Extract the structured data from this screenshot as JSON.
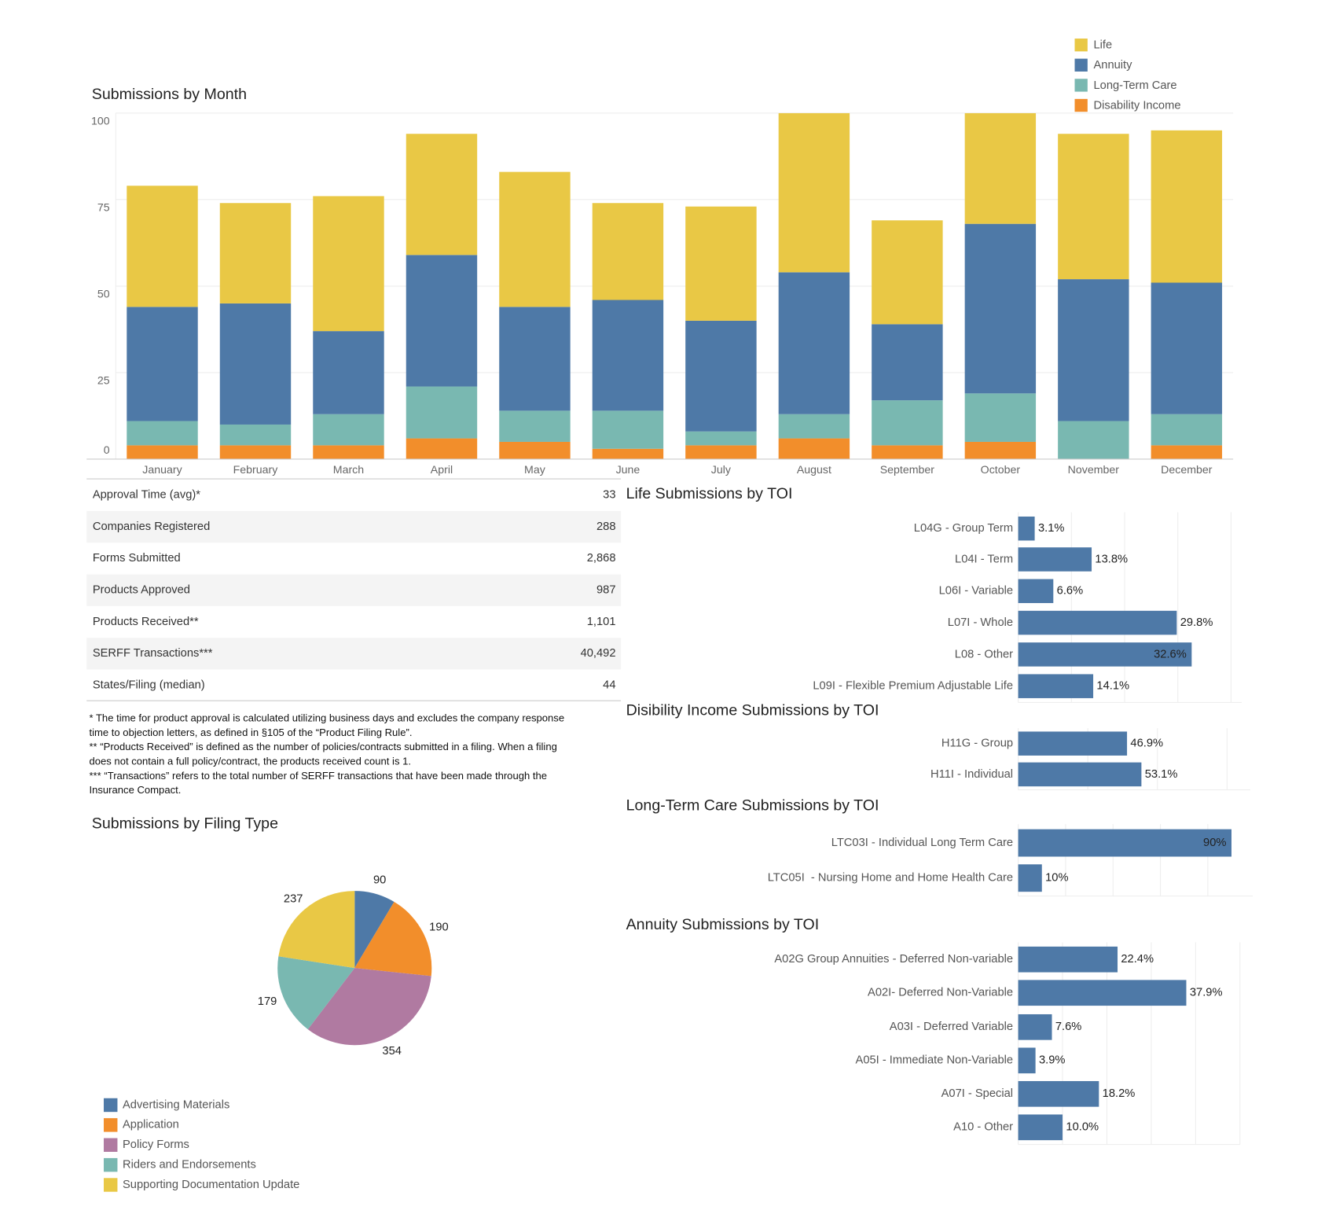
{
  "chart_data": [
    {
      "type": "stacked_bar",
      "title": "Submissions by Month",
      "categories": [
        "January",
        "February",
        "March",
        "April",
        "May",
        "June",
        "July",
        "August",
        "September",
        "October",
        "November",
        "December"
      ],
      "series": [
        {
          "name": "Life",
          "color": "#e9c845",
          "values": [
            35,
            29,
            39,
            35,
            39,
            28,
            33,
            46,
            30,
            32,
            42,
            44
          ]
        },
        {
          "name": "Annuity",
          "color": "#4e79a7",
          "values": [
            33,
            35,
            24,
            38,
            30,
            32,
            32,
            41,
            22,
            49,
            41,
            38
          ]
        },
        {
          "name": "Long-Term Care",
          "color": "#79b8b1",
          "values": [
            7,
            6,
            9,
            15,
            9,
            11,
            4,
            7,
            13,
            14,
            11,
            9
          ]
        },
        {
          "name": "Disability Income",
          "color": "#f28e2b",
          "values": [
            4,
            4,
            4,
            6,
            5,
            3,
            4,
            6,
            4,
            5,
            0,
            4
          ]
        }
      ],
      "ylim": [
        0,
        100
      ],
      "yticks": [
        0,
        25,
        50,
        75,
        100
      ],
      "grid": true,
      "legend": "top-right"
    },
    {
      "type": "pie",
      "title": "Submissions by Filing Type",
      "categories": [
        "Advertising Materials",
        "Application",
        "Policy Forms",
        "Riders and Endorsements",
        "Supporting Documentation Update"
      ],
      "values": [
        90,
        190,
        354,
        179,
        237
      ],
      "colors": [
        "#4e79a7",
        "#f28e2b",
        "#b07aa1",
        "#79b8b1",
        "#e9c845"
      ],
      "legend": "bottom-left"
    },
    {
      "type": "hbar",
      "title": "Life Submissions by TOI",
      "categories": [
        "L04G - Group Term",
        "L04I - Term",
        "L06I - Variable",
        "L07I - Whole",
        "L08 - Other",
        "L09I - Flexible Premium Adjustable Life"
      ],
      "values": [
        3.1,
        13.8,
        6.6,
        29.8,
        32.6,
        14.1
      ],
      "value_labels": [
        "3.1%",
        "13.8%",
        "6.6%",
        "29.8%",
        "32.6%",
        "14.1%"
      ],
      "color": "#4e79a7",
      "xlim": [
        0,
        42
      ],
      "xticks": [
        0,
        10,
        20,
        30,
        40
      ],
      "grid": true
    },
    {
      "type": "hbar",
      "title": "Disibility Income Submissions by TOI",
      "categories": [
        "H11G - Group",
        "H11I - Individual"
      ],
      "values": [
        46.9,
        53.1
      ],
      "value_labels": [
        "46.9%",
        "53.1%"
      ],
      "color": "#4e79a7",
      "xlim": [
        0,
        100
      ],
      "xticks": [
        0,
        30,
        60,
        90
      ],
      "grid": true
    },
    {
      "type": "hbar",
      "title": "Long-Term Care Submissions by TOI",
      "categories": [
        "LTC03I - Individual Long Term Care",
        "LTC05I  - Nursing Home and Home Health Care"
      ],
      "values": [
        90,
        10
      ],
      "value_labels": [
        "90%",
        "10%"
      ],
      "color": "#4e79a7",
      "xlim": [
        0,
        99
      ],
      "xticks": [
        0,
        20,
        40,
        60,
        80
      ],
      "grid": true
    },
    {
      "type": "hbar",
      "title": "Annuity Submissions by TOI",
      "categories": [
        "A02G Group Annuities - Deferred Non-variable",
        "A02I- Deferred Non-Variable",
        "A03I - Deferred Variable",
        "A05I - Immediate Non-Variable",
        "A07I - Special",
        "A10 - Other"
      ],
      "values": [
        22.4,
        37.9,
        7.6,
        3.9,
        18.2,
        10.0
      ],
      "value_labels": [
        "22.4%",
        "37.9%",
        "7.6%",
        "3.9%",
        "18.2%",
        "10.0%"
      ],
      "color": "#4e79a7",
      "xlim": [
        0,
        50
      ],
      "xticks": [
        0,
        10,
        20,
        30,
        40,
        50
      ],
      "grid": true
    }
  ],
  "stats_table": {
    "rows": [
      [
        "Approval Time (avg)*",
        "33"
      ],
      [
        "Companies Registered",
        "288"
      ],
      [
        "Forms Submitted",
        "2,868"
      ],
      [
        "Products Approved",
        "987"
      ],
      [
        "Products Received**",
        "1,101"
      ],
      [
        "SERFF Transactions***",
        "40,492"
      ],
      [
        "States/Filing (median)",
        "44"
      ]
    ]
  },
  "footnotes": [
    "* The time for product approval is calculated utilizing business days and excludes the company response",
    "time to objection letters, as defined in §105 of the “Product Filing Rule”.",
    "** “Products Received” is defined as the number of policies/contracts submitted in a filing. When a filing",
    "does not contain a full policy/contract, the products received count is 1.",
    "*** “Transactions” refers to the total number of SERFF transactions that have been made through the",
    "Insurance Compact."
  ]
}
